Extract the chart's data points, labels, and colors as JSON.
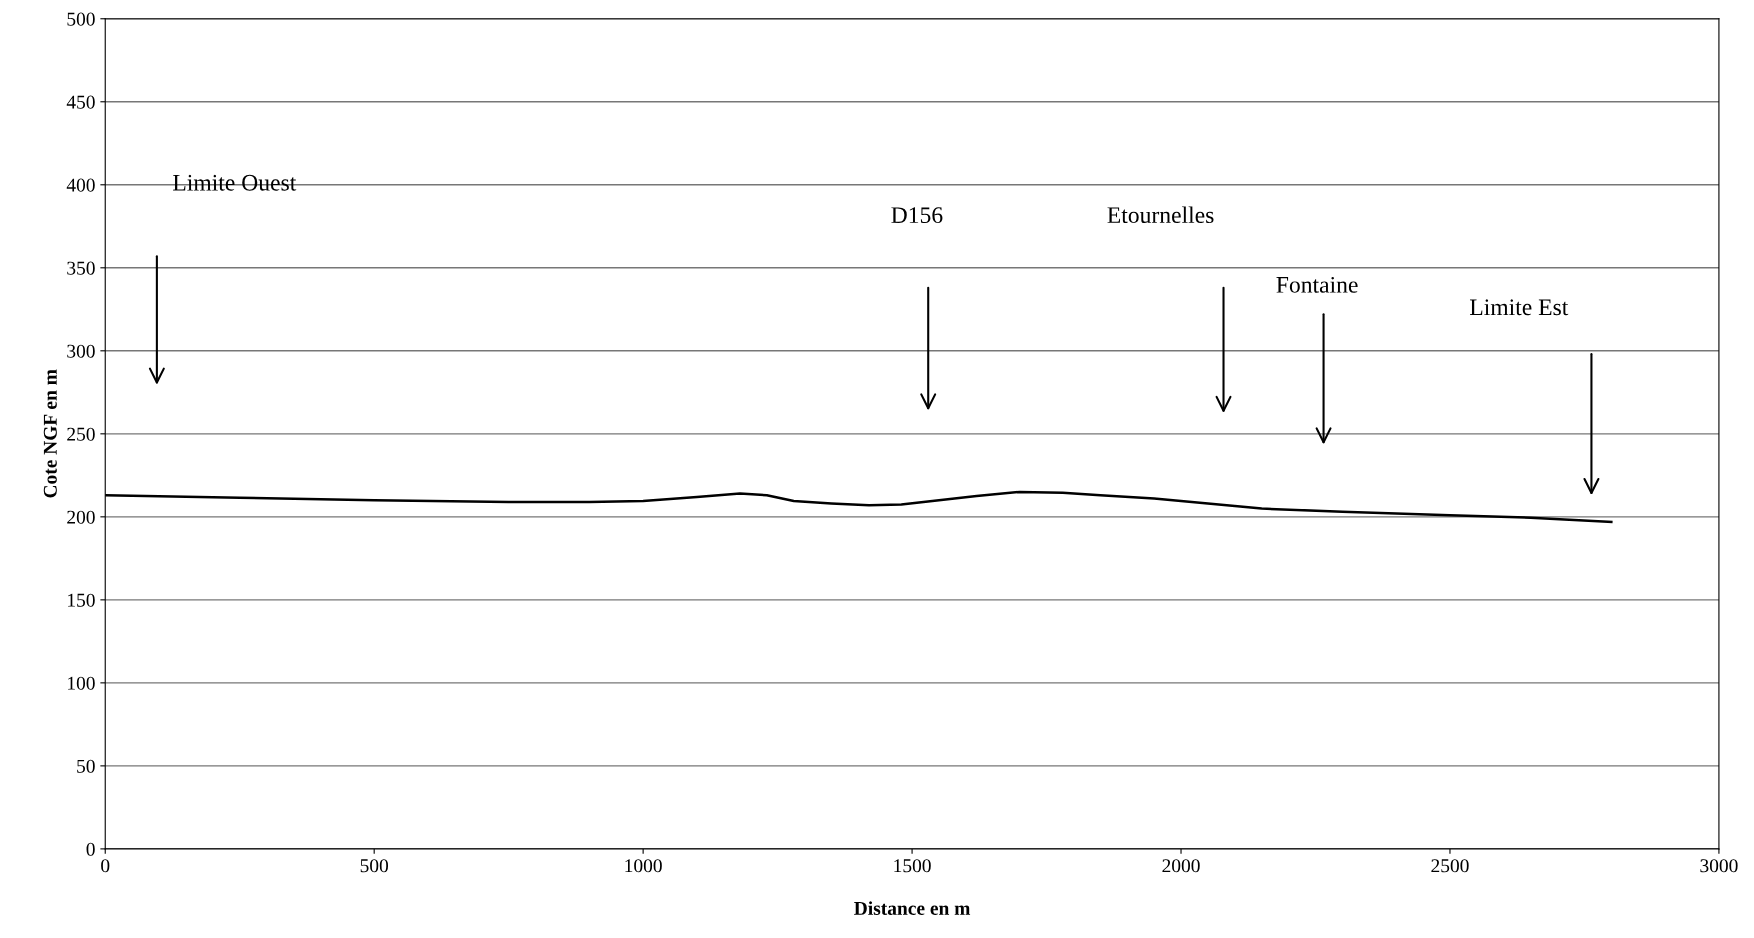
{
  "chart_data": {
    "type": "line",
    "xlabel": "Distance en m",
    "ylabel": "Cote NGF en m",
    "x": [
      0,
      250,
      500,
      750,
      900,
      1000,
      1100,
      1180,
      1230,
      1280,
      1350,
      1420,
      1480,
      1550,
      1620,
      1700,
      1780,
      1850,
      1950,
      2050,
      2150,
      2300,
      2500,
      2650,
      2800
    ],
    "series": [
      {
        "color": "#000000",
        "values": [
          213,
          211.5,
          210,
          209,
          209,
          209.5,
          212,
          214,
          213,
          209.5,
          208,
          207,
          207.5,
          210,
          212.5,
          215,
          214.5,
          213,
          211,
          208,
          205,
          203,
          201,
          199.5,
          197
        ]
      }
    ],
    "annotations": [
      "Limite Ouest",
      "D156",
      "Etournelles",
      "Fontaine",
      "Limite Est"
    ],
    "xlim": [
      0,
      3000
    ],
    "xticks": [
      0,
      500,
      1000,
      1500,
      2000,
      2500,
      3000
    ],
    "ylim": [
      0,
      500
    ],
    "yticks": [
      0,
      50,
      100,
      150,
      200,
      250,
      300,
      350,
      400,
      450,
      500
    ],
    "grid": "y",
    "marker": "none",
    "line_style": "solid",
    "legend": false
  }
}
